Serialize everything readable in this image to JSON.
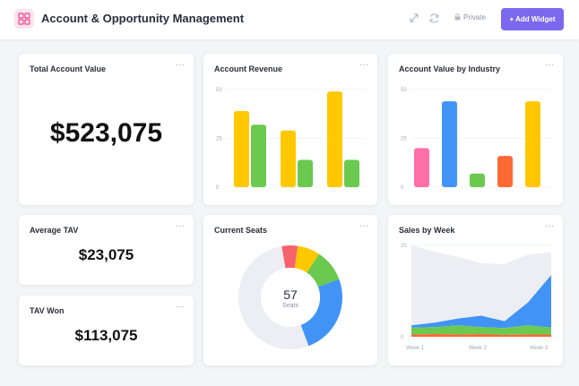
{
  "header": {
    "title": "Account & Opportunity Management",
    "private_label": "Private",
    "add_widget_label": "+ Add Widget"
  },
  "cards": {
    "total_account_value": {
      "title": "Total Account Value",
      "value": "$523,075"
    },
    "average_tav": {
      "title": "Average TAV",
      "value": "$23,075"
    },
    "tav_won": {
      "title": "TAV Won",
      "value": "$113,075"
    },
    "account_revenue": {
      "title": "Account Revenue"
    },
    "account_value_by_industry": {
      "title": "Account Value by Industry"
    },
    "current_seats": {
      "title": "Current Seats"
    },
    "sales_by_week": {
      "title": "Sales by Week"
    },
    "menu_glyph": "···"
  },
  "chart_data": [
    {
      "id": "account_revenue",
      "type": "bar",
      "y_ticks": [
        "50",
        "25",
        "0"
      ],
      "ylim": [
        0,
        50
      ],
      "groups": [
        {
          "values": [
            39,
            32
          ],
          "colors": [
            "#ffc800",
            "#6bc950"
          ]
        },
        {
          "values": [
            29,
            14
          ],
          "colors": [
            "#ffc800",
            "#6bc950"
          ]
        },
        {
          "values": [
            49,
            14
          ],
          "colors": [
            "#ffc800",
            "#6bc950"
          ]
        }
      ]
    },
    {
      "id": "account_value_by_industry",
      "type": "bar",
      "y_ticks": [
        "50",
        "25",
        "0"
      ],
      "ylim": [
        0,
        50
      ],
      "values": [
        20,
        44,
        7,
        16,
        44
      ],
      "colors": [
        "#ff6fa8",
        "#4194f6",
        "#6bc950",
        "#fd6935",
        "#ffc800"
      ]
    },
    {
      "id": "current_seats",
      "type": "pie",
      "center_value": "57",
      "center_label": "Seats",
      "slices": [
        {
          "value": 5,
          "color": "#f7636b"
        },
        {
          "value": 7,
          "color": "#ffc800"
        },
        {
          "value": 10,
          "color": "#6bc950"
        },
        {
          "value": 25,
          "color": "#4194f6"
        },
        {
          "value": 53,
          "color": "#eceef3"
        }
      ]
    },
    {
      "id": "sales_by_week",
      "type": "area",
      "y_ticks": [
        "20",
        "0"
      ],
      "ylim": [
        0,
        20
      ],
      "x_labels": [
        "Week 1",
        "Week 2",
        "Week 3"
      ],
      "x": [
        0,
        1,
        2,
        3,
        4,
        5,
        6
      ],
      "series": [
        {
          "values": [
            0.5,
            0.6,
            0.5,
            0.6,
            0.4,
            0.5,
            0.5
          ],
          "color": "#fd6935"
        },
        {
          "values": [
            1.5,
            1.5,
            2.0,
            1.5,
            1.5,
            2.0,
            1.5
          ],
          "color": "#6bc950"
        },
        {
          "values": [
            0.5,
            1.0,
            1.5,
            2.5,
            1.5,
            5.0,
            11.5
          ],
          "color": "#4194f6"
        },
        {
          "values": [
            17.5,
            15.5,
            13.5,
            11.5,
            12.5,
            10.5,
            5.0
          ],
          "color": "#eceef3"
        }
      ]
    }
  ]
}
